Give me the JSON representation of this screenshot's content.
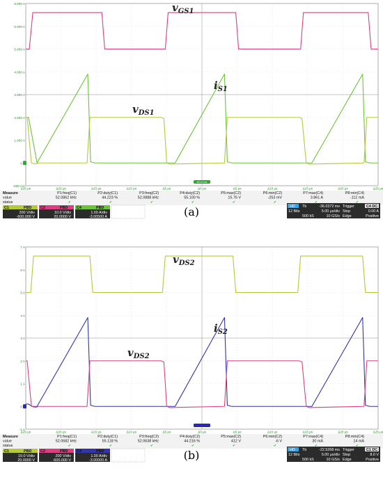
{
  "chart_data": [
    {
      "type": "line",
      "panel": "a",
      "caption": "(a)",
      "y_ticks": [
        "8.000 A",
        "6.000 A",
        "5.000 A",
        "4.000 A",
        "3.000 A",
        "2.000 A",
        "1.000 A",
        "0 A",
        "-600 mA"
      ],
      "x_ticks": [
        "Δ25 μs",
        "Δ20 μs",
        "Δ15 μs",
        "Δ10 μs",
        "Δ5 μs",
        "Δ0 μs",
        "Δ5 μs",
        "Δ10 μs",
        "Δ15 μs",
        "Δ20 μs",
        "Δ25 μs"
      ],
      "trigger_marker": "Δ0.0 ms",
      "annotations": [
        {
          "text": "v",
          "sub": "GS1"
        },
        {
          "text": "i",
          "sub": "S1"
        },
        {
          "text": "v",
          "sub": "DS1"
        }
      ],
      "series": [
        {
          "color": "#d9407f",
          "x": [
            -25,
            -24.5,
            -24,
            -14.2,
            -13.8,
            -5.2,
            -4.8,
            4.8,
            5.2,
            14.0,
            14.4,
            23.6,
            24.0,
            25
          ],
          "y": [
            5.0,
            5.0,
            6.6,
            6.6,
            5.0,
            5.0,
            6.6,
            6.6,
            5.0,
            5.0,
            6.6,
            6.6,
            5.0,
            5.0
          ]
        },
        {
          "color": "#6ec23c",
          "x": [
            -25,
            -24.6,
            -23.4,
            -16.2,
            -15.8,
            -15.2,
            -14.9,
            -5.4,
            -5.0,
            -3.8,
            3.2,
            3.6,
            4.2,
            4.5,
            14.0,
            14.4,
            15.6,
            22.8,
            23.2,
            23.8,
            24.1,
            25
          ],
          "y": [
            2.0,
            2.0,
            0,
            3.9,
            0.05,
            0,
            0,
            0,
            0,
            0,
            3.9,
            0.05,
            0,
            0,
            0,
            0,
            0,
            3.9,
            0.05,
            0,
            0,
            0
          ]
        },
        {
          "color": "#b5c93a",
          "x": [
            -25,
            -24.8,
            -24.2,
            -23.6,
            -23.2,
            -16.3,
            -15.9,
            -5.8,
            -5.4,
            -5.0,
            -4.6,
            3.2,
            3.6,
            13.8,
            14.2,
            14.8,
            15.2,
            23.0,
            23.4,
            25
          ],
          "y": [
            2.0,
            2.0,
            0,
            -0.05,
            0,
            0,
            2.0,
            2.0,
            1.95,
            0,
            -0.05,
            0,
            2.0,
            2.0,
            1.95,
            0,
            -0.05,
            0,
            2.0,
            2.0
          ]
        }
      ],
      "measure": {
        "headers": [
          "Measure",
          "value",
          "status"
        ],
        "params": [
          {
            "name": "P1:freq(C1)",
            "value": "52.0862 kHz"
          },
          {
            "name": "P2:duty(C1)",
            "value": "44.223 %"
          },
          {
            "name": "P3:freq(C2)",
            "value": "52.0888 kHz"
          },
          {
            "name": "P4:duty(C2)",
            "value": "55.100 %"
          },
          {
            "name": "P5:max(C2)",
            "value": "15.76 V"
          },
          {
            "name": "P6:min(C2)",
            "value": "-253 mV"
          },
          {
            "name": "P7:max(C4)",
            "value": "3.861 A"
          },
          {
            "name": "P8:min(C4)",
            "value": "-112 mA"
          }
        ],
        "channels": [
          {
            "id": "C1",
            "tag": "PBD",
            "color": "#b5c93a",
            "vdiv": "200 V/div",
            "offset": "-600.000 V"
          },
          {
            "id": "C2",
            "tag": "PBD",
            "color": "#d9407f",
            "vdiv": "10.0 V/div",
            "offset": "20.0000 V"
          },
          {
            "id": "C4",
            "tag": "PBD",
            "color": "#6ec23c",
            "vdiv": "1.00 A/div",
            "offset": "-3.00500 A"
          }
        ],
        "timebase": {
          "hd": "HD",
          "bits": "12 Bits",
          "tb": "Tb",
          "delay": "-36.0372 ms",
          "tdiv": "5.00 μs/div",
          "samples": "500 kS",
          "rate": "10 GS/s",
          "trigger": "Trigger",
          "trig_tag": "C4 DC",
          "mode": "Stop",
          "level": "0.00 A",
          "edge": "Edge",
          "slope": "Positive"
        }
      }
    },
    {
      "type": "line",
      "panel": "b",
      "caption": "(b)",
      "y_ticks": [
        "7 A",
        "6 A",
        "5 A",
        "4 A",
        "3 A",
        "2 A",
        "1 A",
        "0 A",
        "-1 A"
      ],
      "x_ticks": [
        "Δ25 μs",
        "Δ20 μs",
        "Δ15 μs",
        "Δ10 μs",
        "Δ5 μs",
        "Δ0 μs",
        "Δ5 μs",
        "Δ10 μs",
        "Δ15 μs",
        "Δ20 μs",
        "Δ25 μs"
      ],
      "annotations": [
        {
          "text": "v",
          "sub": "DS2"
        },
        {
          "text": "i",
          "sub": "S2"
        },
        {
          "text": "v",
          "sub": "DS2"
        }
      ],
      "series": [
        {
          "color": "#b5c93a",
          "x": [
            -25,
            -24.3,
            -23.9,
            -15.9,
            -15.5,
            -5.6,
            -5.2,
            4.4,
            4.8,
            13.6,
            14.0,
            22.8,
            23.2,
            25
          ],
          "y": [
            5.0,
            5.0,
            6.6,
            6.6,
            5.0,
            5.0,
            6.6,
            6.6,
            5.0,
            5.0,
            6.6,
            6.6,
            5.0,
            5.0
          ]
        },
        {
          "color": "#3434a8",
          "x": [
            -25,
            -24.6,
            -24.1,
            -23.4,
            -16.2,
            -15.8,
            -15.2,
            -14.9,
            -5.4,
            -5.0,
            -3.8,
            3.2,
            3.6,
            4.2,
            4.5,
            14.0,
            14.4,
            15.6,
            22.8,
            23.2,
            23.8,
            24.1,
            25
          ],
          "y": [
            0.1,
            0.1,
            0,
            0,
            3.9,
            0.05,
            0,
            0,
            0,
            0,
            0,
            3.9,
            0.05,
            0,
            0,
            0,
            0,
            0,
            3.9,
            0.05,
            0,
            0,
            0
          ]
        },
        {
          "color": "#d9407f",
          "x": [
            -25,
            -24.8,
            -24.2,
            -23.6,
            -23.2,
            -16.3,
            -15.9,
            -5.8,
            -5.4,
            -5.0,
            -4.6,
            3.2,
            3.6,
            13.8,
            14.2,
            14.8,
            15.2,
            23.0,
            23.4,
            25
          ],
          "y": [
            2.0,
            2.0,
            0,
            -0.05,
            0,
            0,
            2.0,
            2.0,
            1.95,
            0,
            -0.05,
            0,
            2.0,
            2.0,
            1.95,
            0,
            -0.05,
            0,
            2.0,
            2.0
          ]
        }
      ],
      "measure": {
        "headers": [
          "Measure",
          "value",
          "status"
        ],
        "params": [
          {
            "name": "P1:freq(C1)",
            "value": "52.0682 kHz"
          },
          {
            "name": "P2:duty(C1)",
            "value": "55.118 %"
          },
          {
            "name": "P3:freq(C2)",
            "value": "52.0638 kHz"
          },
          {
            "name": "P4:duty(C2)",
            "value": "44.216 %"
          },
          {
            "name": "P5:max(C2)",
            "value": "412 V"
          },
          {
            "name": "P6:min(C2)",
            "value": "-6 V"
          },
          {
            "name": "P7:max(C4)",
            "value": "30 mA"
          },
          {
            "name": "P8:min(C4)",
            "value": "14 mA"
          }
        ],
        "channels": [
          {
            "id": "C1",
            "tag": "PBD",
            "color": "#b5c93a",
            "vdiv": "10.0 V/div",
            "offset": "20.0000 V"
          },
          {
            "id": "C2",
            "tag": "PBD",
            "color": "#d9407f",
            "vdiv": "200 V/div",
            "offset": "-600.000 V"
          },
          {
            "id": "C4",
            "tag": "PBD",
            "color": "#3434a8",
            "vdiv": "1.00 A/div",
            "offset": "-3.00000 A"
          }
        ],
        "timebase": {
          "hd": "HD",
          "bits": "12 Bits",
          "tb": "Tb",
          "delay": "-22.5268 ms",
          "tdiv": "5.00 μs/div",
          "samples": "500 kS",
          "rate": "10 GS/s",
          "trigger": "Trigger",
          "trig_tag": "C1 DC",
          "mode": "Stop",
          "level": "8.0 V",
          "edge": "Edge",
          "slope": "Positive"
        }
      }
    }
  ]
}
